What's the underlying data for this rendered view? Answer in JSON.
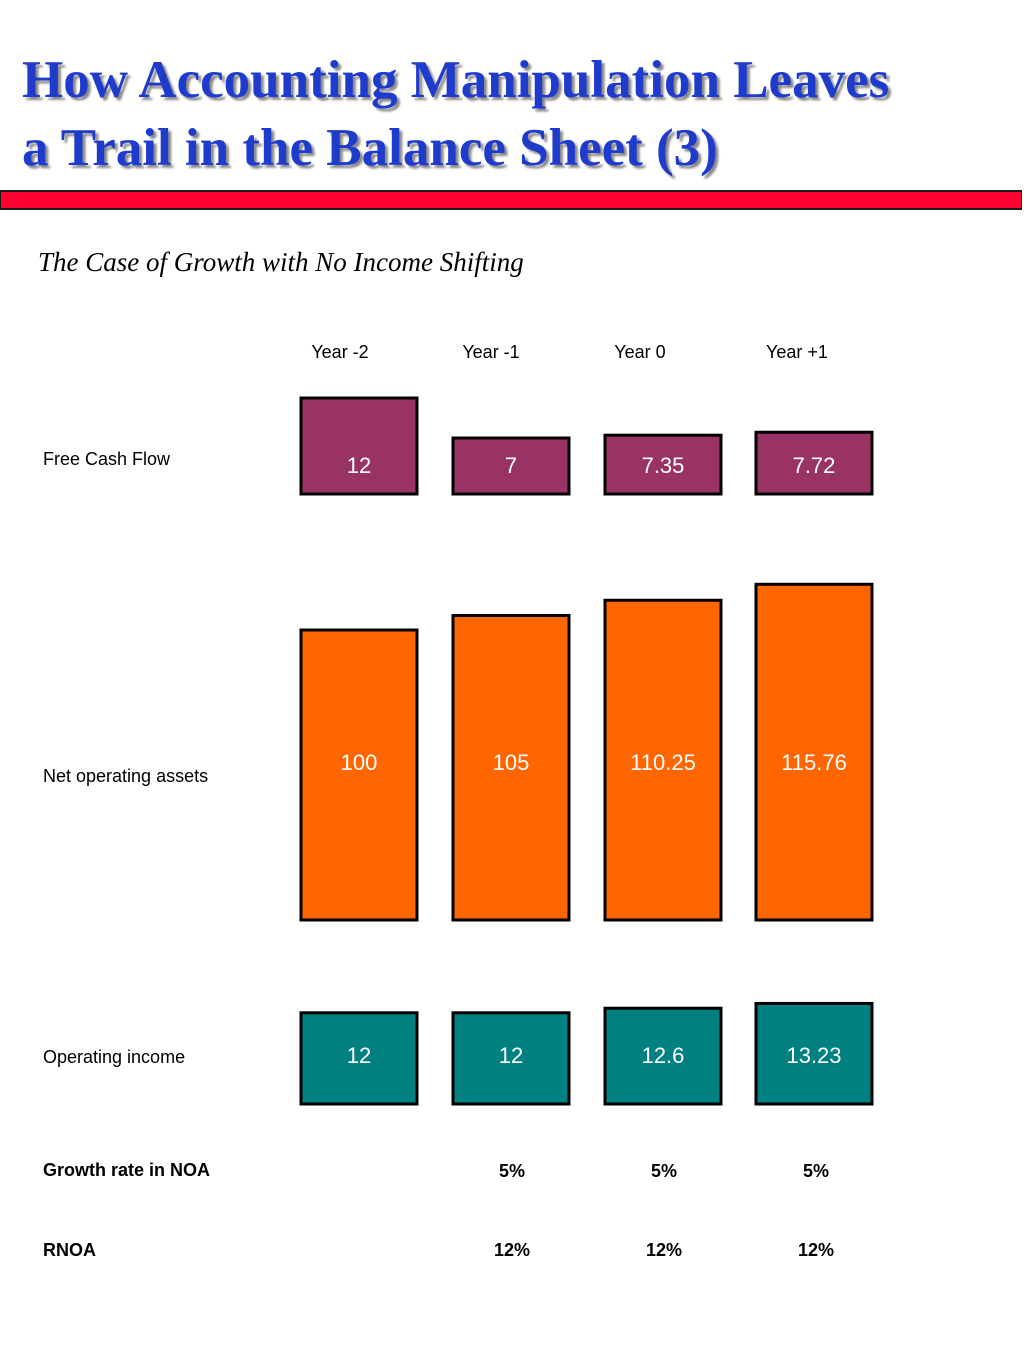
{
  "title_line1": "How Accounting Manipulation Leaves",
  "title_line2": "a Trail in the Balance Sheet (3)",
  "subtitle": "The Case of Growth with No Income Shifting",
  "colors": {
    "title": "#1f3bcc",
    "rule": "#ff0033",
    "free_cash_flow": "#993366",
    "net_operating_assets": "#ff6600",
    "operating_income": "#008080"
  },
  "chart_data": {
    "type": "bar",
    "categories": [
      "Year -2",
      "Year -1",
      "Year 0",
      "Year +1"
    ],
    "series": [
      {
        "name": "Free Cash Flow",
        "values": [
          12,
          7,
          7.35,
          7.72
        ],
        "labels": [
          "12",
          "7",
          "7.35",
          "7.72"
        ]
      },
      {
        "name": "Net operating assets",
        "values": [
          100,
          105,
          110.25,
          115.76
        ],
        "labels": [
          "100",
          "105",
          "110.25",
          "115.76"
        ]
      },
      {
        "name": "Operating income",
        "values": [
          12,
          12,
          12.6,
          13.23
        ],
        "labels": [
          "12",
          "12",
          "12.6",
          "13.23"
        ]
      }
    ],
    "table_rows": [
      {
        "name": "Growth rate in NOA",
        "values": [
          "",
          "5%",
          "5%",
          "5%"
        ]
      },
      {
        "name": "RNOA",
        "values": [
          "",
          "12%",
          "12%",
          "12%"
        ]
      }
    ]
  }
}
